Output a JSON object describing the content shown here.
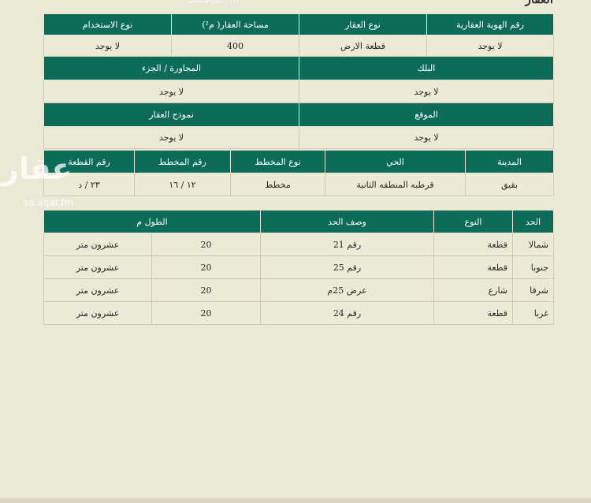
{
  "title": "العقار",
  "watermark": {
    "logo": "عقار",
    "url": "sa.aqar.fm"
  },
  "property": {
    "headers1": [
      "رقم الهوية العقارية",
      "نوع العقار",
      "مساحة العقار( م²)",
      "نوع الاستخدام"
    ],
    "values1": [
      "لا يوجد",
      "قطعة الارض",
      "400",
      "لا يوجد"
    ],
    "headers2": [
      "البلك",
      "المجاورة / الجزء"
    ],
    "values2": [
      "لا يوجد",
      "لا يوجد"
    ],
    "headers3": [
      "الموقع",
      "نموذج العقار"
    ],
    "values3": [
      "لا يوجد",
      "لا يوجد"
    ]
  },
  "location": {
    "headers": [
      "المدينة",
      "الحي",
      "نوع المخطط",
      "رقم المخطط",
      "رقم القطعة"
    ],
    "values": [
      "بقيق",
      "قرطبه المنطقه الثانية",
      "مخطط",
      "١٢ / ١٦",
      "٢٣ / د"
    ]
  },
  "boundaries": {
    "headers": [
      "الحد",
      "النوع",
      "وصف الحد",
      "الطول م"
    ],
    "rows": [
      [
        "شمالا",
        "قطعة",
        "رقم 21",
        "20",
        "عشرون متر"
      ],
      [
        "جنوبا",
        "قطعة",
        "رقم 25",
        "20",
        "عشرون متر"
      ],
      [
        "شرقا",
        "شارع",
        "عرض 25م",
        "20",
        "عشرون متر"
      ],
      [
        "غربا",
        "قطعة",
        "رقم 24",
        "20",
        "عشرون متر"
      ]
    ]
  }
}
